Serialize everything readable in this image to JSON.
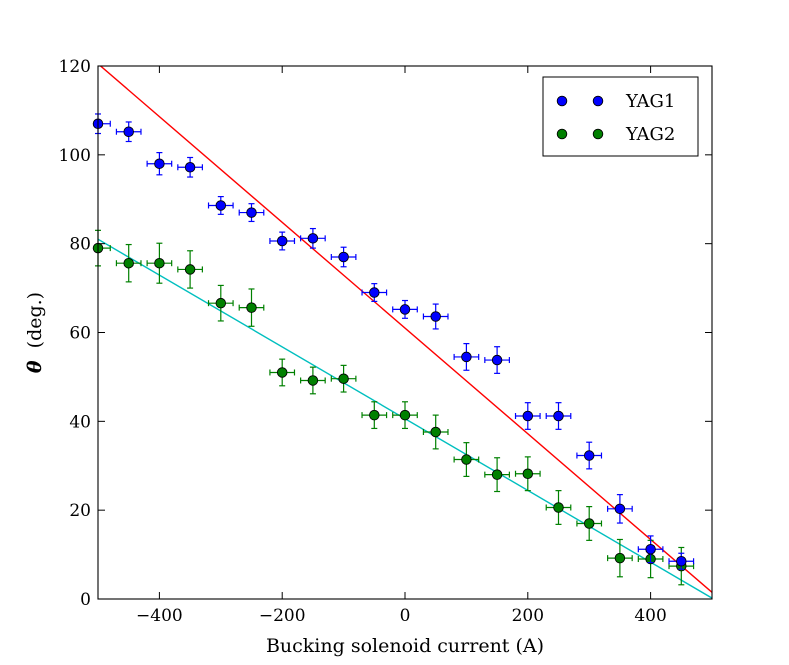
{
  "chart_data": {
    "type": "scatter",
    "title": "",
    "xlabel": "Bucking solenoid current (A)",
    "ylabel_symbol": "θ",
    "ylabel_unit": "(deg.)",
    "xlim": [
      -500,
      500
    ],
    "ylim": [
      0,
      120
    ],
    "xticks": [
      -400,
      -200,
      0,
      200,
      400
    ],
    "yticks": [
      0,
      20,
      40,
      60,
      80,
      100,
      120
    ],
    "legend_position": "top-right",
    "series": [
      {
        "name": "YAG1",
        "marker_color": "#0000ff",
        "line_color": "#ff0000",
        "fit": {
          "x": [
            -500,
            500
          ],
          "y": [
            120.5,
            1.5
          ]
        },
        "x": [
          -500,
          -450,
          -400,
          -350,
          -300,
          -250,
          -200,
          -150,
          -100,
          -50,
          0,
          50,
          100,
          150,
          200,
          250,
          300,
          350,
          400,
          450
        ],
        "y": [
          107,
          105.2,
          98,
          97.2,
          88.6,
          87,
          80.6,
          81.2,
          77,
          69,
          65.2,
          63.6,
          54.5,
          53.8,
          41.2,
          41.2,
          32.3,
          20.3,
          11.2,
          8.5
        ],
        "x_err": [
          20,
          20,
          20,
          20,
          20,
          20,
          20,
          20,
          20,
          20,
          20,
          20,
          20,
          20,
          20,
          20,
          20,
          20,
          20,
          20
        ],
        "y_err": [
          2.2,
          2.2,
          2.5,
          2.2,
          2,
          2,
          2,
          2.2,
          2.2,
          2,
          2,
          2.8,
          3,
          3,
          3,
          3,
          3,
          3.2,
          3,
          1.8
        ]
      },
      {
        "name": "YAG2",
        "marker_color": "#008000",
        "line_color": "#00bfbf",
        "fit": {
          "x": [
            -500,
            500
          ],
          "y": [
            81,
            0.2
          ]
        },
        "x": [
          -500,
          -450,
          -400,
          -350,
          -300,
          -250,
          -200,
          -150,
          -100,
          -50,
          0,
          50,
          100,
          150,
          200,
          250,
          300,
          350,
          400,
          450
        ],
        "y": [
          79,
          75.6,
          75.6,
          74.2,
          66.6,
          65.6,
          51,
          49.2,
          49.6,
          41.4,
          41.4,
          37.6,
          31.4,
          28,
          28.2,
          20.6,
          17,
          9.2,
          9,
          7.4
        ],
        "x_err": [
          20,
          20,
          20,
          20,
          20,
          20,
          20,
          20,
          20,
          20,
          20,
          20,
          20,
          20,
          20,
          20,
          20,
          20,
          20,
          20
        ],
        "y_err": [
          4,
          4.2,
          4.5,
          4.2,
          4,
          4.2,
          3,
          3,
          3,
          3,
          3,
          3.8,
          3.8,
          3.8,
          3.8,
          3.8,
          3.8,
          4.2,
          4.2,
          4.2
        ]
      }
    ]
  }
}
